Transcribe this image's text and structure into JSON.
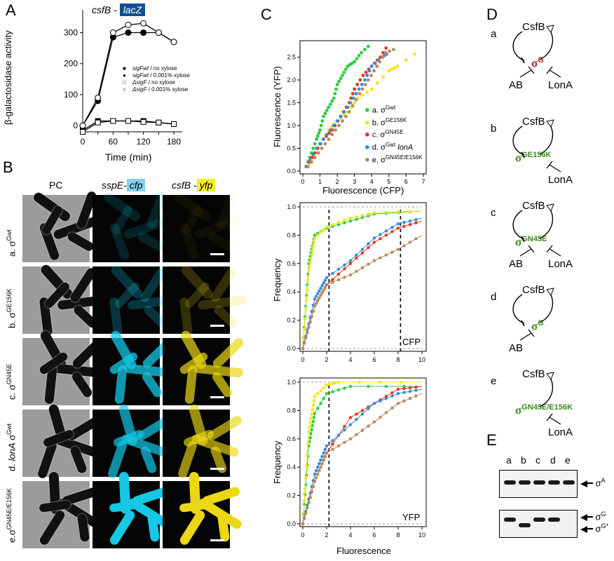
{
  "panelA": {
    "label": "A",
    "title_left": "csfB",
    "title_sep": " - ",
    "title_box": "lacZ",
    "ylabel": "β-galactosidase activity",
    "xlabel": "Time (min)",
    "yticks": [
      "0",
      "100",
      "200",
      "300"
    ],
    "xticks": [
      "0",
      "30",
      "60",
      "90",
      "120",
      "150",
      "180"
    ],
    "legend": [
      {
        "marker": "filled-square",
        "text_i": "sigFwt",
        "text": " / no xylose"
      },
      {
        "marker": "filled-circle",
        "text_i": "sigFwt",
        "text": " / 0.001% xylose"
      },
      {
        "marker": "open-square",
        "text_i": "ΔsigF",
        "text": " / no xylose"
      },
      {
        "marker": "open-circle",
        "text_i": "ΔsigF",
        "text": " / 0.001% xylose"
      }
    ]
  },
  "chart_data": [
    {
      "type": "line",
      "title": "csfB - lacZ",
      "xlabel": "Time (min)",
      "ylabel": "β-galactosidase activity",
      "xlim": [
        0,
        180
      ],
      "ylim": [
        -20,
        360
      ],
      "x": [
        0,
        30,
        60,
        90,
        120,
        150,
        180
      ],
      "series": [
        {
          "name": "sigFwt / no xylose",
          "values": [
            -15,
            15,
            15,
            15,
            15,
            10,
            5
          ]
        },
        {
          "name": "sigFwt / 0.001% xylose",
          "values": [
            0,
            80,
            285,
            300,
            300,
            300,
            270
          ]
        },
        {
          "name": "ΔsigF / no xylose",
          "values": [
            -20,
            10,
            15,
            15,
            12,
            10,
            5
          ]
        },
        {
          "name": "ΔsigF / 0.001% xylose",
          "values": [
            0,
            90,
            300,
            325,
            330,
            300,
            270
          ]
        }
      ]
    },
    {
      "type": "scatter",
      "xlabel": "Fluorescence (CFP)",
      "ylabel": "Fluorescence (YFP)",
      "xlim": [
        0,
        7
      ],
      "ylim": [
        0,
        2.8
      ],
      "series": [
        {
          "name": "a. σGwt",
          "values": [
            [
              0.2,
              0.1
            ],
            [
              0.5,
              0.4
            ],
            [
              0.8,
              0.7
            ],
            [
              1.0,
              0.9
            ],
            [
              1.2,
              1.2
            ],
            [
              1.5,
              1.4
            ],
            [
              1.8,
              1.6
            ],
            [
              2.0,
              1.9
            ],
            [
              2.3,
              2.1
            ],
            [
              2.6,
              2.3
            ],
            [
              3.0,
              2.4
            ],
            [
              3.4,
              2.6
            ],
            [
              4.0,
              2.8
            ]
          ]
        },
        {
          "name": "b. σGE156K",
          "values": [
            [
              0.3,
              0.1
            ],
            [
              0.6,
              0.3
            ],
            [
              1.0,
              0.6
            ],
            [
              1.5,
              0.9
            ],
            [
              2.0,
              1.1
            ],
            [
              2.6,
              1.3
            ],
            [
              3.2,
              1.6
            ],
            [
              4.0,
              1.8
            ],
            [
              5.0,
              2.2
            ],
            [
              5.5,
              2.3
            ],
            [
              7.0,
              2.7
            ]
          ]
        },
        {
          "name": "c. σGN45E",
          "values": [
            [
              0.2,
              0.1
            ],
            [
              0.7,
              0.4
            ],
            [
              1.2,
              0.7
            ],
            [
              1.7,
              0.9
            ],
            [
              2.2,
              1.2
            ],
            [
              2.7,
              1.5
            ],
            [
              3.0,
              1.8
            ],
            [
              3.5,
              2.1
            ],
            [
              4.0,
              2.3
            ],
            [
              4.5,
              2.5
            ],
            [
              5.0,
              2.8
            ]
          ]
        },
        {
          "name": "d. σGwt lonA",
          "values": [
            [
              0.2,
              0.1
            ],
            [
              0.8,
              0.5
            ],
            [
              1.4,
              0.8
            ],
            [
              2.0,
              1.1
            ],
            [
              2.6,
              1.4
            ],
            [
              3.1,
              1.7
            ],
            [
              3.6,
              2.0
            ],
            [
              4.0,
              2.3
            ],
            [
              4.6,
              2.5
            ],
            [
              5.0,
              2.6
            ]
          ]
        },
        {
          "name": "e. σGN45E/E156K",
          "values": [
            [
              0.3,
              0.1
            ],
            [
              0.9,
              0.4
            ],
            [
              1.5,
              0.7
            ],
            [
              2.1,
              1.0
            ],
            [
              2.7,
              1.3
            ],
            [
              3.3,
              1.7
            ],
            [
              3.8,
              2.0
            ],
            [
              4.3,
              2.3
            ],
            [
              4.8,
              2.6
            ],
            [
              5.5,
              2.7
            ]
          ]
        }
      ]
    },
    {
      "type": "line",
      "xlabel": "",
      "ylabel": "Frequency",
      "annotation": "CFP",
      "xlim": [
        0,
        10
      ],
      "ylim": [
        0,
        1
      ],
      "vlines": [
        2.2,
        8.2
      ],
      "series": [
        {
          "name": "a",
          "values": [
            [
              0,
              0
            ],
            [
              0.5,
              0.6
            ],
            [
              1.0,
              0.8
            ],
            [
              2.0,
              0.85
            ],
            [
              4.0,
              0.9
            ],
            [
              6.0,
              0.95
            ],
            [
              10,
              0.97
            ]
          ]
        },
        {
          "name": "b",
          "values": [
            [
              0,
              0
            ],
            [
              0.5,
              0.55
            ],
            [
              1.0,
              0.78
            ],
            [
              2.0,
              0.86
            ],
            [
              4.0,
              0.92
            ],
            [
              6.0,
              0.96
            ],
            [
              10,
              0.97
            ]
          ]
        },
        {
          "name": "c",
          "values": [
            [
              0,
              0
            ],
            [
              1.0,
              0.3
            ],
            [
              2.0,
              0.45
            ],
            [
              4.0,
              0.6
            ],
            [
              6.0,
              0.75
            ],
            [
              8.0,
              0.85
            ],
            [
              10,
              0.9
            ]
          ]
        },
        {
          "name": "d",
          "values": [
            [
              0,
              0
            ],
            [
              1.0,
              0.35
            ],
            [
              2.0,
              0.5
            ],
            [
              4.0,
              0.62
            ],
            [
              6.0,
              0.78
            ],
            [
              8.0,
              0.88
            ],
            [
              10,
              0.92
            ]
          ]
        },
        {
          "name": "e",
          "values": [
            [
              0,
              0
            ],
            [
              1.0,
              0.3
            ],
            [
              2.0,
              0.45
            ],
            [
              4.0,
              0.52
            ],
            [
              6.0,
              0.62
            ],
            [
              8.0,
              0.7
            ],
            [
              10,
              0.8
            ]
          ]
        }
      ]
    },
    {
      "type": "line",
      "xlabel": "Fluorescence",
      "ylabel": "Frequency",
      "annotation": "YFP",
      "xlim": [
        0,
        10
      ],
      "ylim": [
        0,
        1
      ],
      "vlines": [
        2.2
      ],
      "series": [
        {
          "name": "a",
          "values": [
            [
              0,
              0
            ],
            [
              0.5,
              0.55
            ],
            [
              1.0,
              0.78
            ],
            [
              2.0,
              0.92
            ],
            [
              4.0,
              0.97
            ],
            [
              10,
              0.97
            ]
          ]
        },
        {
          "name": "b",
          "values": [
            [
              0,
              0
            ],
            [
              0.5,
              0.65
            ],
            [
              1.0,
              0.9
            ],
            [
              2.0,
              0.98
            ],
            [
              3.0,
              1.0
            ],
            [
              10,
              1.0
            ]
          ]
        },
        {
          "name": "c",
          "values": [
            [
              0,
              0
            ],
            [
              1.0,
              0.3
            ],
            [
              2.0,
              0.5
            ],
            [
              4.0,
              0.75
            ],
            [
              6.0,
              0.85
            ],
            [
              8.0,
              0.95
            ],
            [
              10,
              0.97
            ]
          ]
        },
        {
          "name": "d",
          "values": [
            [
              0,
              0
            ],
            [
              1.0,
              0.35
            ],
            [
              2.0,
              0.55
            ],
            [
              4.0,
              0.7
            ],
            [
              6.0,
              0.85
            ],
            [
              8.0,
              0.92
            ],
            [
              10,
              0.95
            ]
          ]
        },
        {
          "name": "e",
          "values": [
            [
              0,
              0
            ],
            [
              1.0,
              0.3
            ],
            [
              2.0,
              0.5
            ],
            [
              4.0,
              0.6
            ],
            [
              6.0,
              0.72
            ],
            [
              8.0,
              0.85
            ],
            [
              10,
              0.92
            ]
          ]
        }
      ]
    }
  ],
  "panelB": {
    "label": "B",
    "col_pc": "PC",
    "col_cfp_left": "sspE-",
    "col_cfp_box": "cfp",
    "col_yfp_left": "csfB -",
    "col_yfp_box": "yfp",
    "rows": [
      {
        "prefix": "a. σ",
        "sup": "Gwt",
        "suffix_i": ""
      },
      {
        "prefix": "b. σ",
        "sup": "GE156K",
        "suffix_i": ""
      },
      {
        "prefix": "c. σ",
        "sup": "GN45E",
        "suffix_i": ""
      },
      {
        "prefix": "d. ",
        "italic": "lonA",
        "mid": " σ",
        "sup": "Gwt"
      },
      {
        "prefix": "e.σ",
        "sup": "GN45E/E156K",
        "suffix_i": ""
      }
    ]
  },
  "panelC": {
    "label": "C",
    "scatter_ylabel": "Fluorescence (YFP)",
    "scatter_xlabel": "Fluorescence (CFP)",
    "scatter_xticks": [
      "0",
      "1",
      "2",
      "3",
      "4",
      "5",
      "6",
      "7"
    ],
    "scatter_yticks": [
      "0.0",
      "0.5",
      "1.0",
      "1.5",
      "2.0",
      "2.5"
    ],
    "freq_ylabel": "Frequency",
    "freq_xlabel": "Fluorescence",
    "freq_xticks": [
      "0",
      "2",
      "4",
      "6",
      "8",
      "10"
    ],
    "freq_yticks": [
      "0.0",
      "0.2",
      "0.4",
      "0.6",
      "0.8",
      "1.0"
    ],
    "cfp_tag": "CFP",
    "yfp_tag": "YFP",
    "legend": [
      {
        "color": "#2ecc40",
        "pre": "a. σ",
        "sup": "Gwt",
        "post": ""
      },
      {
        "color": "#f4e61b",
        "pre": "b. σ",
        "sup": "GE156K",
        "post": ""
      },
      {
        "color": "#e8351a",
        "pre": "c. σ",
        "sup": "GN45E",
        "post": ""
      },
      {
        "color": "#2f8fe0",
        "pre": "d. σ",
        "sup": "Gwt",
        "post": " lonA"
      },
      {
        "color": "#b88a5c",
        "pre": "e. σ",
        "sup": "GN45E/E156K",
        "post": ""
      }
    ]
  },
  "panelD": {
    "label": "D",
    "nets": [
      {
        "letter": "a",
        "top": "CsfB",
        "sigma_sup": "G",
        "color": "#b22222",
        "left": "AB",
        "right": "LonA"
      },
      {
        "letter": "b",
        "top": "CsfB",
        "sigma_sup": "GE156K",
        "color": "#3c8a1e",
        "left": "",
        "right": "LonA"
      },
      {
        "letter": "c",
        "top": "CsfB",
        "sigma_sup": "GN45E",
        "color": "#3c8a1e",
        "left": "AB",
        "right": "LonA"
      },
      {
        "letter": "d",
        "top": "CsfB",
        "sigma_sup": "G",
        "color": "#3c8a1e",
        "left": "AB",
        "right": ""
      },
      {
        "letter": "e",
        "top": "CsfB",
        "sigma_sup": "GN45E/E156K",
        "color": "#3c8a1e",
        "left": "",
        "right": "LonA"
      }
    ],
    "sigma": "σ"
  },
  "panelE": {
    "label": "E",
    "lanes": [
      "a",
      "b",
      "c",
      "d",
      "e"
    ],
    "top_label_sup": "A",
    "bottom_label1_sup": "G",
    "bottom_label2_sup": "G*",
    "sigma": "σ"
  }
}
